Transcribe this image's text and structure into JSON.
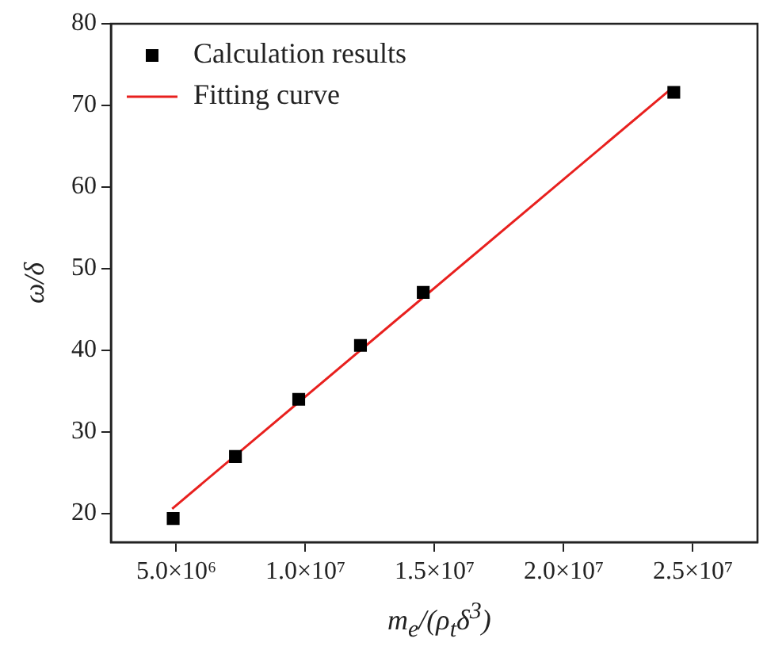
{
  "chart_data": {
    "type": "scatter",
    "xlabel": "m$_{e}$/(ρ$_{t}$δ$^{3}$)",
    "ylabel": "ω/δ",
    "xlim": [
      2470000,
      27500000
    ],
    "ylim": [
      16.5,
      80
    ],
    "xticks": [
      {
        "value": 5000000,
        "label": "5.0×10⁶"
      },
      {
        "value": 10000000,
        "label": "1.0×10⁷"
      },
      {
        "value": 15000000,
        "label": "1.5×10⁷"
      },
      {
        "value": 20000000,
        "label": "2.0×10⁷"
      },
      {
        "value": 25000000,
        "label": "2.5×10⁷"
      }
    ],
    "yticks": [
      20,
      30,
      40,
      50,
      60,
      70,
      80
    ],
    "grid": false,
    "legend": "top left",
    "series": [
      {
        "name": "Calculation results",
        "marker": "square",
        "color": "#000000",
        "x": [
          4880000,
          7290000,
          9740000,
          12130000,
          14560000,
          24260000
        ],
        "values": [
          19.4,
          27.0,
          34.0,
          40.6,
          47.1,
          71.6
        ]
      },
      {
        "name": "Fitting curve",
        "type": "line",
        "marker": "none",
        "line_style": "solid",
        "color": "#e8201e",
        "x": [
          4840000,
          24220000
        ],
        "values": [
          20.6,
          72.2
        ]
      }
    ]
  }
}
